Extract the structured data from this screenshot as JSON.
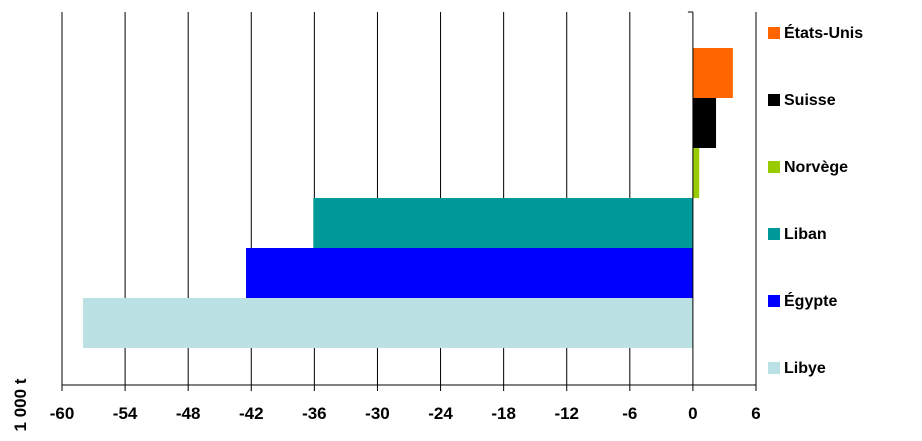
{
  "chart_data": {
    "type": "bar",
    "orientation": "horizontal",
    "ylabel": "1 000 t",
    "xlim": [
      -60,
      6
    ],
    "x_ticks": [
      "-60",
      "-54",
      "-48",
      "-42",
      "-36",
      "-30",
      "-24",
      "-18",
      "-12",
      "-6",
      "0",
      "6"
    ],
    "grid": true,
    "legend_position": "right",
    "categories": [
      "États-Unis",
      "Suisse",
      "Norvège",
      "Liban",
      "Égypte",
      "Libye"
    ],
    "values": [
      3.8,
      2.2,
      0.6,
      -36.1,
      -42.5,
      -58.0
    ],
    "colors": [
      "#FF6600",
      "#000000",
      "#99CC00",
      "#009999",
      "#0000FF",
      "#BCE1E4"
    ]
  }
}
